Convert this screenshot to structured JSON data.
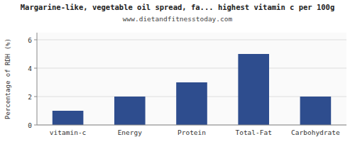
{
  "chart_data": {
    "type": "bar",
    "title": "Margarine-like, vegetable oil spread, fa... highest vitamin c per 100g",
    "subtitle": "www.dietandfitnesstoday.com",
    "categories": [
      "vitamin-c",
      "Energy",
      "Protein",
      "Total-Fat",
      "Carbohydrate"
    ],
    "values": [
      1.0,
      2.0,
      3.0,
      5.0,
      2.0
    ],
    "color": "#2e4d8e",
    "ylabel": "Percentage of RDH (%)",
    "ylim": [
      0,
      6.5
    ],
    "yticks": [
      0,
      2,
      4,
      6
    ],
    "grid": true
  }
}
